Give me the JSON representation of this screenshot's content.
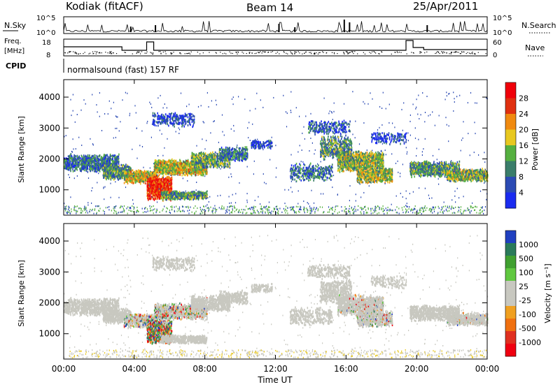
{
  "header": {
    "station": "Kodiak (fitACF)",
    "beam": "Beam 14",
    "date": "25/Apr/2011"
  },
  "noise_panel": {
    "left_label": "N.Sky",
    "right_label": "N.Search",
    "left_ticks": [
      "10^5",
      "10^0"
    ],
    "right_ticks": [
      "10^5",
      "10^0"
    ]
  },
  "freq_panel": {
    "left_label_1": "Freq.",
    "left_label_2": "[MHz]",
    "right_label": "Nave",
    "left_ticks": [
      "18",
      "8"
    ],
    "right_ticks": [
      "60",
      "0"
    ]
  },
  "cpid": {
    "label": "CPID",
    "text": "normalsound (fast) 157 RF"
  },
  "power_panel": {
    "ylabel": "Slant Range [km]",
    "yticks": [
      "4000",
      "3000",
      "2000",
      "1000"
    ],
    "colorbar_label": "Power [dB]",
    "colorbar_ticks": [
      "28",
      "24",
      "20",
      "16",
      "12",
      "8",
      "4"
    ],
    "colors": [
      "#1a2bf0",
      "#2c4bb4",
      "#3a7d6a",
      "#55b040",
      "#e8c820",
      "#f08a10",
      "#e03010",
      "#f0000a"
    ]
  },
  "velocity_panel": {
    "ylabel": "Slant Range [km]",
    "yticks": [
      "4000",
      "3000",
      "2000",
      "1000"
    ],
    "colorbar_label": "Velocity [m s⁻¹]",
    "colorbar_ticks": [
      "1000",
      "500",
      "100",
      "25",
      "-25",
      "-100",
      "-500",
      "-1000"
    ],
    "colors": [
      "#2040c0",
      "#2a7a5a",
      "#40a030",
      "#60c840",
      "#c8c8c0",
      "#c8c8c0",
      "#f0a020",
      "#f07010",
      "#e03020",
      "#f00010"
    ]
  },
  "x_axis": {
    "ticks": [
      "00:00",
      "04:00",
      "08:00",
      "12:00",
      "16:00",
      "20:00",
      "00:00"
    ],
    "label": "Time UT"
  }
}
